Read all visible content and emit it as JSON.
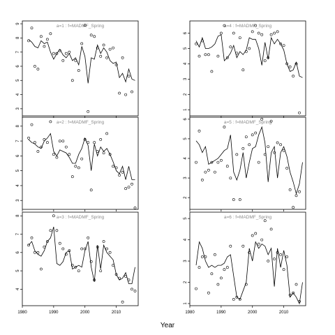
{
  "figure": {
    "xlabel": "Year",
    "x_ticks": [
      1980,
      1990,
      2000,
      2010
    ]
  },
  "chart_data": [
    {
      "type": "scatter",
      "title": "a=1 : f=MADMF_Spring",
      "xlim": [
        1980,
        2017
      ],
      "ylim": [
        2.5,
        9.2
      ],
      "yticks": [
        3,
        4,
        5,
        6,
        7,
        8,
        9
      ],
      "points_x": [
        1982,
        1983,
        1984,
        1985,
        1986,
        1987,
        1988,
        1989,
        1990,
        1991,
        1992,
        1993,
        1994,
        1995,
        1996,
        1997,
        1998,
        1999,
        2000,
        2001,
        2002,
        2003,
        2004,
        2005,
        2006,
        2007,
        2008,
        2009,
        2010,
        2011,
        2012,
        2013,
        2014,
        2015
      ],
      "points_y": [
        7.8,
        8.7,
        6.0,
        5.8,
        8.1,
        7.4,
        7.9,
        8.3,
        6.9,
        6.9,
        7.1,
        6.4,
        6.9,
        7.0,
        5.0,
        6.4,
        5.7,
        7.6,
        8.9,
        2.8,
        8.2,
        8.1,
        7.3,
        6.7,
        7.5,
        6.6,
        7.2,
        7.3,
        6.1,
        4.1,
        6.6,
        4.0,
        5.3,
        4.2
      ],
      "fit_x": [
        1982,
        1983,
        1984,
        1985,
        1986,
        1987,
        1988,
        1989,
        1990,
        1991,
        1992,
        1993,
        1994,
        1995,
        1996,
        1997,
        1998,
        1999,
        2000,
        2001,
        2002,
        2003,
        2004,
        2005,
        2006,
        2007,
        2008,
        2009,
        2010,
        2011,
        2012,
        2013,
        2014,
        2015,
        2016
      ],
      "fit_y": [
        7.9,
        7.7,
        7.4,
        7.3,
        7.8,
        7.6,
        7.7,
        7.0,
        6.5,
        6.9,
        7.2,
        6.8,
        6.6,
        6.9,
        6.4,
        6.6,
        6.1,
        7.4,
        6.7,
        4.8,
        6.6,
        6.5,
        7.5,
        6.9,
        7.3,
        7.0,
        6.4,
        6.2,
        6.3,
        5.2,
        5.5,
        4.9,
        5.8,
        5.1,
        5.0
      ]
    },
    {
      "type": "scatter",
      "title": "a=4 : f=MADMF_Spring",
      "xlim": [
        1980,
        2017
      ],
      "ylim": [
        0.6,
        6.8
      ],
      "yticks": [
        1,
        2,
        3,
        4,
        5,
        6
      ],
      "points_x": [
        1982,
        1983,
        1984,
        1985,
        1986,
        1987,
        1989,
        1990,
        1991,
        1992,
        1993,
        1994,
        1995,
        1996,
        1997,
        1998,
        1999,
        2000,
        2001,
        2002,
        2003,
        2004,
        2005,
        2006,
        2007,
        2008,
        2009,
        2010,
        2011,
        2012,
        2013,
        2014,
        2015
      ],
      "points_y": [
        5.3,
        4.5,
        5.5,
        4.6,
        4.6,
        3.5,
        4.5,
        6.0,
        6.5,
        4.4,
        5.1,
        6.0,
        4.7,
        5.7,
        3.6,
        4.8,
        5.0,
        6.1,
        6.5,
        6.0,
        5.9,
        4.2,
        4.4,
        5.9,
        6.0,
        6.1,
        5.3,
        5.2,
        4.0,
        3.8,
        3.2,
        4.0,
        0.8
      ],
      "fit_x": [
        1982,
        1983,
        1984,
        1985,
        1986,
        1987,
        1988,
        1989,
        1990,
        1991,
        1992,
        1993,
        1994,
        1995,
        1996,
        1997,
        1998,
        1999,
        2000,
        2001,
        2002,
        2003,
        2004,
        2005,
        2006,
        2007,
        2008,
        2009,
        2010,
        2011,
        2012,
        2013,
        2014,
        2015,
        2016
      ],
      "fit_y": [
        5.5,
        5.1,
        5.7,
        5.0,
        5.0,
        5.1,
        5.3,
        5.8,
        5.9,
        4.2,
        4.4,
        4.7,
        5.2,
        4.4,
        4.8,
        4.6,
        4.9,
        5.7,
        5.6,
        5.6,
        5.0,
        3.9,
        5.4,
        4.3,
        5.7,
        5.3,
        5.6,
        5.3,
        4.9,
        4.0,
        3.5,
        3.6,
        4.1,
        3.2,
        3.1
      ]
    },
    {
      "type": "scatter",
      "title": "a=2 : f=MADMF_Spring",
      "xlim": [
        1980,
        2017
      ],
      "ylim": [
        2.4,
        8.6
      ],
      "yticks": [
        3,
        4,
        5,
        6,
        7,
        8
      ],
      "points_x": [
        1982,
        1983,
        1984,
        1985,
        1986,
        1987,
        1988,
        1989,
        1990,
        1991,
        1992,
        1993,
        1994,
        1995,
        1996,
        1997,
        1998,
        1999,
        2000,
        2001,
        2002,
        2003,
        2004,
        2005,
        2006,
        2007,
        2008,
        2009,
        2010,
        2011,
        2012,
        2013,
        2014,
        2015,
        2016
      ],
      "points_y": [
        7.2,
        8.1,
        6.9,
        6.3,
        6.6,
        7.1,
        6.9,
        8.3,
        6.1,
        5.9,
        7.0,
        7.0,
        6.6,
        6.1,
        4.6,
        5.3,
        5.2,
        5.8,
        7.1,
        6.9,
        3.7,
        6.9,
        6.3,
        7.1,
        6.2,
        7.5,
        6.1,
        5.3,
        5.2,
        4.7,
        4.9,
        3.8,
        3.9,
        4.1,
        2.5
      ],
      "fit_x": [
        1982,
        1983,
        1984,
        1985,
        1986,
        1987,
        1988,
        1989,
        1990,
        1991,
        1992,
        1993,
        1994,
        1995,
        1996,
        1997,
        1998,
        1999,
        2000,
        2001,
        2002,
        2003,
        2004,
        2005,
        2006,
        2007,
        2008,
        2009,
        2010,
        2011,
        2012,
        2013,
        2014,
        2015,
        2016
      ],
      "fit_y": [
        7.1,
        6.9,
        6.8,
        6.6,
        6.5,
        7.0,
        7.2,
        7.5,
        6.3,
        6.0,
        6.4,
        6.3,
        6.2,
        5.9,
        5.5,
        5.5,
        6.1,
        6.5,
        7.2,
        6.7,
        5.0,
        6.8,
        6.0,
        6.6,
        6.3,
        6.5,
        6.1,
        5.6,
        5.0,
        4.8,
        5.3,
        4.4,
        5.3,
        4.4,
        4.4
      ]
    },
    {
      "type": "scatter",
      "title": "a=5 : f=MADMF_Spring",
      "xlim": [
        1980,
        2017
      ],
      "ylim": [
        1.4,
        6.1
      ],
      "yticks": [
        2,
        3,
        4,
        5,
        6
      ],
      "points_x": [
        1982,
        1983,
        1984,
        1985,
        1986,
        1987,
        1988,
        1989,
        1990,
        1991,
        1992,
        1993,
        1994,
        1995,
        1996,
        1997,
        1998,
        1999,
        2000,
        2001,
        2002,
        2003,
        2004,
        2005,
        2006,
        2007,
        2008,
        2009,
        2010,
        2011,
        2012,
        2013,
        2014,
        2015
      ],
      "points_y": [
        3.8,
        5.4,
        2.9,
        3.3,
        3.4,
        3.8,
        3.3,
        3.8,
        3.9,
        5.6,
        3.6,
        3.0,
        1.9,
        4.2,
        1.9,
        4.5,
        5.1,
        4.7,
        5.2,
        5.3,
        3.8,
        6.0,
        4.2,
        4.6,
        5.9,
        4.3,
        4.8,
        4.7,
        4.4,
        3.5,
        2.4,
        1.5,
        2.1,
        2.3
      ],
      "fit_x": [
        1982,
        1983,
        1984,
        1985,
        1986,
        1987,
        1988,
        1989,
        1990,
        1991,
        1992,
        1993,
        1994,
        1995,
        1996,
        1997,
        1998,
        1999,
        2000,
        2001,
        2002,
        2003,
        2004,
        2005,
        2006,
        2007,
        2008,
        2009,
        2010,
        2011,
        2012,
        2013,
        2014,
        2015,
        2016
      ],
      "fit_y": [
        4.9,
        4.7,
        4.3,
        4.6,
        3.7,
        3.8,
        3.9,
        4.0,
        4.2,
        4.4,
        4.5,
        5.2,
        3.3,
        2.9,
        3.4,
        4.3,
        3.0,
        3.8,
        4.5,
        4.6,
        5.2,
        5.6,
        4.8,
        2.8,
        4.3,
        4.6,
        3.0,
        4.3,
        4.6,
        4.1,
        3.3,
        2.8,
        2.2,
        2.7,
        3.8
      ]
    },
    {
      "type": "scatter",
      "title": "a=3 : f=MADMF_Spring",
      "xlim": [
        1980,
        2017
      ],
      "ylim": [
        3.1,
        8.2
      ],
      "yticks": [
        4,
        5,
        6,
        7,
        8
      ],
      "points_x": [
        1982,
        1983,
        1984,
        1985,
        1986,
        1987,
        1988,
        1989,
        1990,
        1991,
        1992,
        1993,
        1994,
        1995,
        1996,
        1997,
        1998,
        1999,
        2000,
        2001,
        2002,
        2003,
        2004,
        2005,
        2006,
        2007,
        2008,
        2009,
        2010,
        2011,
        2012,
        2013,
        2014,
        2015,
        2016
      ],
      "points_y": [
        6.4,
        6.8,
        6.0,
        6.0,
        5.1,
        6.3,
        6.6,
        7.2,
        8.0,
        7.2,
        6.5,
        6.2,
        5.9,
        6.1,
        5.3,
        5.2,
        5.0,
        6.2,
        6.2,
        6.8,
        5.5,
        4.5,
        6.3,
        5.0,
        6.6,
        6.2,
        6.0,
        5.3,
        4.8,
        4.6,
        3.3,
        4.7,
        4.5,
        4.0,
        3.9
      ],
      "fit_x": [
        1982,
        1983,
        1984,
        1985,
        1986,
        1987,
        1988,
        1989,
        1990,
        1991,
        1992,
        1993,
        1994,
        1995,
        1996,
        1997,
        1998,
        1999,
        2000,
        2001,
        2002,
        2003,
        2004,
        2005,
        2006,
        2007,
        2008,
        2009,
        2010,
        2011,
        2012,
        2013,
        2014,
        2015,
        2016
      ],
      "fit_y": [
        6.4,
        6.6,
        6.1,
        5.9,
        5.8,
        6.1,
        6.6,
        6.8,
        7.4,
        5.4,
        5.3,
        5.5,
        6.0,
        6.1,
        5.1,
        5.2,
        5.3,
        5.2,
        6.1,
        6.6,
        5.2,
        4.4,
        6.4,
        5.1,
        6.4,
        6.0,
        5.8,
        5.6,
        4.8,
        4.5,
        4.6,
        4.9,
        4.3,
        4.3,
        5.2
      ]
    },
    {
      "type": "scatter",
      "title": "a=6 : f=MADMF_Spring",
      "xlim": [
        1980,
        2017
      ],
      "ylim": [
        0.9,
        5.3
      ],
      "yticks": [
        1,
        2,
        3,
        4,
        5
      ],
      "points_x": [
        1982,
        1983,
        1984,
        1985,
        1986,
        1987,
        1988,
        1989,
        1990,
        1991,
        1992,
        1993,
        1994,
        1995,
        1996,
        1997,
        1998,
        1999,
        2000,
        2001,
        2002,
        2003,
        2004,
        2005,
        2006,
        2007,
        2008,
        2009,
        2010,
        2011,
        2012,
        2013,
        2014,
        2015
      ],
      "points_y": [
        1.7,
        2.7,
        3.2,
        3.2,
        1.5,
        2.4,
        3.3,
        1.9,
        2.2,
        2.6,
        2.7,
        3.7,
        1.2,
        1.3,
        1.2,
        3.7,
        1.9,
        3.4,
        4.2,
        4.3,
        3.8,
        4.0,
        4.9,
        3.0,
        4.5,
        3.1,
        3.4,
        3.3,
        2.6,
        3.2,
        1.4,
        1.5,
        1.9,
        1.1
      ],
      "fit_x": [
        1982,
        1983,
        1984,
        1985,
        1986,
        1987,
        1988,
        1989,
        1990,
        1991,
        1992,
        1993,
        1994,
        1995,
        1996,
        1997,
        1998,
        1999,
        2000,
        2001,
        2002,
        2003,
        2004,
        2005,
        2006,
        2007,
        2008,
        2009,
        2010,
        2011,
        2012,
        2013,
        2014,
        2015,
        2016
      ],
      "fit_y": [
        2.8,
        3.9,
        3.6,
        3.0,
        2.7,
        2.8,
        2.7,
        2.8,
        2.8,
        2.9,
        3.2,
        3.3,
        2.3,
        1.3,
        1.2,
        1.6,
        2.0,
        3.6,
        3.0,
        3.9,
        3.6,
        3.8,
        3.7,
        3.3,
        3.6,
        1.8,
        3.6,
        2.7,
        3.5,
        2.8,
        1.3,
        1.5,
        1.3,
        1.0,
        2.0
      ]
    }
  ]
}
